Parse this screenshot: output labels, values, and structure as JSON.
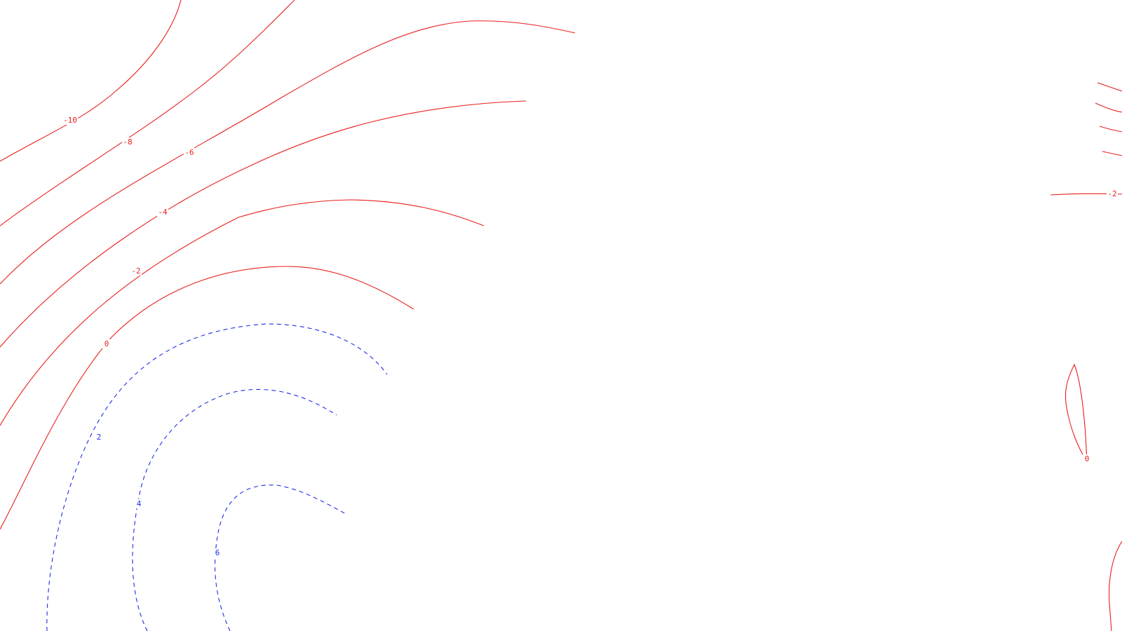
{
  "colors": {
    "negative": "#e8201c",
    "positive": "#1c2ee8",
    "background": "#ffffff"
  },
  "contours": {
    "labels": {
      "n10": "-10",
      "n8": "-8",
      "n6": "-6",
      "n4": "-4",
      "n2": "-2",
      "zero": "0",
      "p2": "2",
      "p4": "4",
      "p6": "6",
      "right_n2": "-2",
      "right_zero": "0"
    }
  }
}
